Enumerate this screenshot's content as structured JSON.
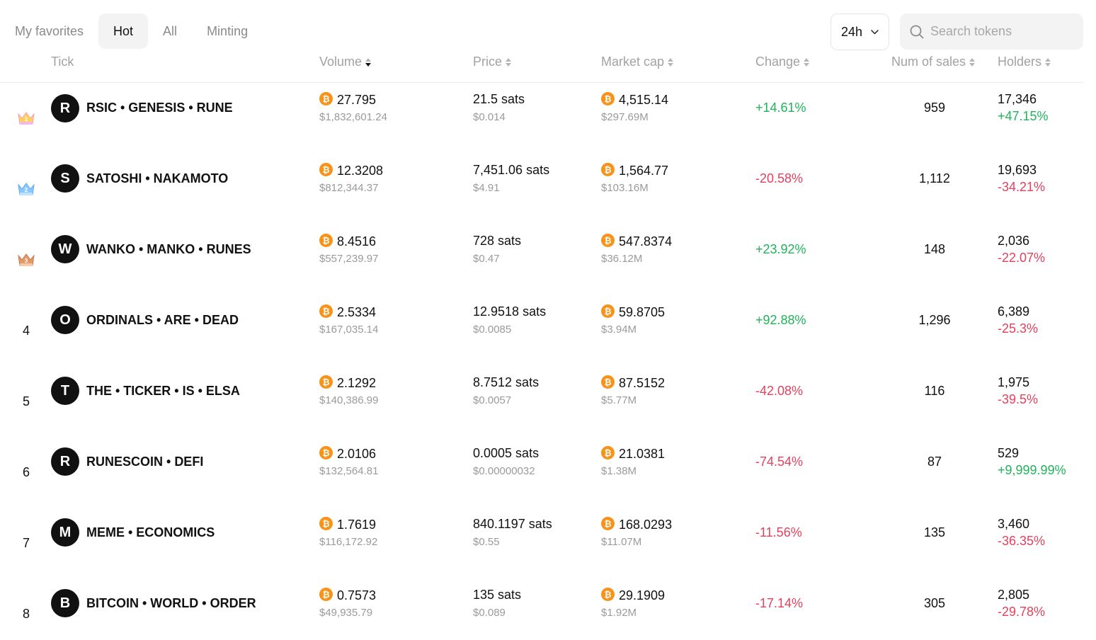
{
  "tabs": [
    {
      "label": "My favorites",
      "active": false
    },
    {
      "label": "Hot",
      "active": true
    },
    {
      "label": "All",
      "active": false
    },
    {
      "label": "Minting",
      "active": false
    }
  ],
  "period": {
    "label": "24h"
  },
  "search": {
    "placeholder": "Search tokens"
  },
  "columns": {
    "tick": "Tick",
    "volume": "Volume",
    "price": "Price",
    "market_cap": "Market cap",
    "change": "Change",
    "num_sales": "Num of sales",
    "holders": "Holders"
  },
  "colors": {
    "positive": "#21b35a",
    "negative": "#e5405e",
    "btc": "#f7931a"
  },
  "rows": [
    {
      "rank": "1",
      "crown": "gold-crown-icon",
      "letter": "R",
      "name": "RSIC • GENESIS • RUNE",
      "volume_btc": "27.795",
      "volume_usd": "$1,832,601.24",
      "price_sats": "21.5 sats",
      "price_usd": "$0.014",
      "mcap_btc": "4,515.14",
      "mcap_usd": "$297.69M",
      "change": "+14.61%",
      "change_dir": "pos",
      "sales": "959",
      "holders": "17,346",
      "holders_change": "+47.15%",
      "holders_dir": "pos"
    },
    {
      "rank": "2",
      "crown": "silver-crown-icon",
      "letter": "S",
      "name": "SATOSHI • NAKAMOTO",
      "volume_btc": "12.3208",
      "volume_usd": "$812,344.37",
      "price_sats": "7,451.06 sats",
      "price_usd": "$4.91",
      "mcap_btc": "1,564.77",
      "mcap_usd": "$103.16M",
      "change": "-20.58%",
      "change_dir": "neg",
      "sales": "1,112",
      "holders": "19,693",
      "holders_change": "-34.21%",
      "holders_dir": "neg"
    },
    {
      "rank": "3",
      "crown": "bronze-crown-icon",
      "letter": "W",
      "name": "WANKO • MANKO • RUNES",
      "volume_btc": "8.4516",
      "volume_usd": "$557,239.97",
      "price_sats": "728 sats",
      "price_usd": "$0.47",
      "mcap_btc": "547.8374",
      "mcap_usd": "$36.12M",
      "change": "+23.92%",
      "change_dir": "pos",
      "sales": "148",
      "holders": "2,036",
      "holders_change": "-22.07%",
      "holders_dir": "neg"
    },
    {
      "rank": "4",
      "crown": "",
      "letter": "O",
      "name": "ORDINALS • ARE • DEAD",
      "volume_btc": "2.5334",
      "volume_usd": "$167,035.14",
      "price_sats": "12.9518 sats",
      "price_usd": "$0.0085",
      "mcap_btc": "59.8705",
      "mcap_usd": "$3.94M",
      "change": "+92.88%",
      "change_dir": "pos",
      "sales": "1,296",
      "holders": "6,389",
      "holders_change": "-25.3%",
      "holders_dir": "neg"
    },
    {
      "rank": "5",
      "crown": "",
      "letter": "T",
      "name": "THE • TICKER • IS • ELSA",
      "volume_btc": "2.1292",
      "volume_usd": "$140,386.99",
      "price_sats": "8.7512 sats",
      "price_usd": "$0.0057",
      "mcap_btc": "87.5152",
      "mcap_usd": "$5.77M",
      "change": "-42.08%",
      "change_dir": "neg",
      "sales": "116",
      "holders": "1,975",
      "holders_change": "-39.5%",
      "holders_dir": "neg"
    },
    {
      "rank": "6",
      "crown": "",
      "letter": "R",
      "name": "RUNESCOIN • DEFI",
      "volume_btc": "2.0106",
      "volume_usd": "$132,564.81",
      "price_sats": "0.0005 sats",
      "price_usd": "$0.00000032",
      "mcap_btc": "21.0381",
      "mcap_usd": "$1.38M",
      "change": "-74.54%",
      "change_dir": "neg",
      "sales": "87",
      "holders": "529",
      "holders_change": "+9,999.99%",
      "holders_dir": "pos"
    },
    {
      "rank": "7",
      "crown": "",
      "letter": "M",
      "name": "MEME • ECONOMICS",
      "volume_btc": "1.7619",
      "volume_usd": "$116,172.92",
      "price_sats": "840.1197 sats",
      "price_usd": "$0.55",
      "mcap_btc": "168.0293",
      "mcap_usd": "$11.07M",
      "change": "-11.56%",
      "change_dir": "neg",
      "sales": "135",
      "holders": "3,460",
      "holders_change": "-36.35%",
      "holders_dir": "neg"
    },
    {
      "rank": "8",
      "crown": "",
      "letter": "B",
      "name": "BITCOIN • WORLD • ORDER",
      "volume_btc": "0.7573",
      "volume_usd": "$49,935.79",
      "price_sats": "135 sats",
      "price_usd": "$0.089",
      "mcap_btc": "29.1909",
      "mcap_usd": "$1.92M",
      "change": "-17.14%",
      "change_dir": "neg",
      "sales": "305",
      "holders": "2,805",
      "holders_change": "-29.78%",
      "holders_dir": "neg"
    }
  ]
}
